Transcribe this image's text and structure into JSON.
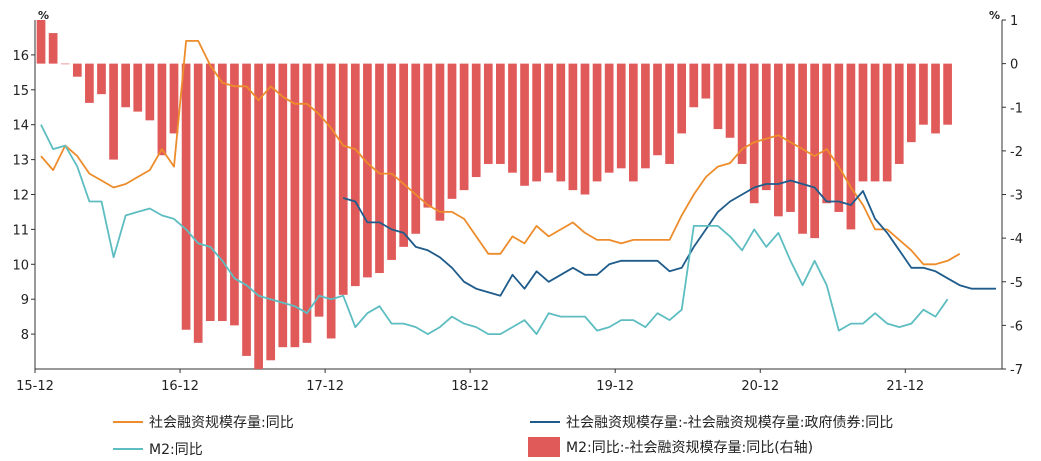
{
  "chart_data": {
    "type": "bar+line",
    "units": {
      "left": "%",
      "right": "%"
    },
    "x_ticks": [
      "15-12",
      "16-12",
      "17-12",
      "18-12",
      "19-12",
      "20-12",
      "21-12"
    ],
    "left_axis": {
      "min": 7,
      "max": 17,
      "ticks": [
        8,
        9,
        10,
        11,
        12,
        13,
        14,
        15,
        16
      ]
    },
    "right_axis": {
      "min": -7,
      "max": 1,
      "ticks": [
        1,
        0,
        -1,
        -2,
        -3,
        -4,
        -5,
        -6,
        -7
      ]
    },
    "series": [
      {
        "name": "社会融资规模存量:同比",
        "axis": "left",
        "kind": "line",
        "color": "#ED8C2B",
        "start": 0,
        "values": [
          13.1,
          12.7,
          13.4,
          13.1,
          12.6,
          12.4,
          12.2,
          12.3,
          12.5,
          12.7,
          13.3,
          12.8,
          16.4,
          16.4,
          15.7,
          15.2,
          15.1,
          15.1,
          14.7,
          15.1,
          14.8,
          14.6,
          14.6,
          14.3,
          13.9,
          13.4,
          13.3,
          12.9,
          12.6,
          12.6,
          12.3,
          12.0,
          11.7,
          11.5,
          11.5,
          11.3,
          10.8,
          10.3,
          10.3,
          10.8,
          10.6,
          11.1,
          10.8,
          11.0,
          11.2,
          10.9,
          10.7,
          10.7,
          10.6,
          10.7,
          10.7,
          10.7,
          10.7,
          11.4,
          12.0,
          12.5,
          12.8,
          12.9,
          13.3,
          13.5,
          13.6,
          13.7,
          13.5,
          13.3,
          13.1,
          13.3,
          12.8,
          12.2,
          11.7,
          11.0,
          11.0,
          10.7,
          10.4,
          10.0,
          10.0,
          10.1,
          10.3
        ]
      },
      {
        "name": "社会融资规模存量:-社会融资规模存量:政府债券:同比",
        "axis": "left",
        "kind": "line",
        "color": "#1F5C8B",
        "start": 25,
        "values": [
          11.9,
          11.8,
          11.2,
          11.2,
          11.0,
          10.9,
          10.5,
          10.4,
          10.2,
          9.9,
          9.5,
          9.3,
          9.2,
          9.1,
          9.7,
          9.3,
          9.8,
          9.5,
          9.7,
          9.9,
          9.7,
          9.7,
          10.0,
          10.1,
          10.1,
          10.1,
          10.1,
          9.8,
          9.9,
          10.5,
          11.0,
          11.5,
          11.8,
          12.0,
          12.2,
          12.3,
          12.3,
          12.4,
          12.3,
          12.2,
          11.8,
          11.8,
          11.7,
          12.1,
          11.3,
          10.9,
          10.4,
          9.9,
          9.9,
          9.8,
          9.6,
          9.4,
          9.3,
          9.3,
          9.3
        ]
      },
      {
        "name": "M2:同比",
        "axis": "left",
        "kind": "line",
        "color": "#5DBDC1",
        "start": 0,
        "values": [
          14.0,
          13.3,
          13.4,
          12.8,
          11.8,
          11.8,
          10.2,
          11.4,
          11.5,
          11.6,
          11.4,
          11.3,
          11.0,
          10.6,
          10.5,
          10.1,
          9.6,
          9.4,
          9.1,
          9.0,
          8.9,
          8.8,
          8.6,
          9.1,
          9.0,
          9.1,
          8.2,
          8.6,
          8.8,
          8.3,
          8.3,
          8.2,
          8.0,
          8.2,
          8.5,
          8.3,
          8.2,
          8.0,
          8.0,
          8.2,
          8.4,
          8.0,
          8.6,
          8.5,
          8.5,
          8.5,
          8.1,
          8.2,
          8.4,
          8.4,
          8.2,
          8.6,
          8.4,
          8.7,
          11.1,
          11.1,
          11.1,
          10.8,
          10.4,
          11.0,
          10.5,
          10.9,
          10.1,
          9.4,
          10.1,
          9.4,
          8.1,
          8.3,
          8.3,
          8.6,
          8.3,
          8.2,
          8.3,
          8.7,
          8.5,
          9.0
        ]
      },
      {
        "name": "M2:同比:-社会融资规模存量:同比(右轴)",
        "axis": "right",
        "kind": "bar",
        "color": "#E05A5A",
        "start": 0,
        "values": [
          1.0,
          0.7,
          0.0,
          -0.3,
          -0.9,
          -0.7,
          -2.2,
          -1.0,
          -1.1,
          -1.3,
          -2.1,
          -1.6,
          -6.1,
          -6.4,
          -5.9,
          -5.9,
          -6.0,
          -6.7,
          -7.0,
          -6.8,
          -6.5,
          -6.5,
          -6.4,
          -5.8,
          -6.3,
          -5.3,
          -5.1,
          -4.9,
          -4.8,
          -4.5,
          -4.2,
          -3.9,
          -3.3,
          -3.6,
          -3.1,
          -2.9,
          -2.6,
          -2.3,
          -2.3,
          -2.5,
          -2.8,
          -2.7,
          -2.5,
          -2.7,
          -2.9,
          -3.0,
          -2.7,
          -2.5,
          -2.4,
          -2.7,
          -2.4,
          -2.1,
          -2.3,
          -1.6,
          -1.0,
          -0.8,
          -1.5,
          -1.7,
          -2.3,
          -3.2,
          -2.9,
          -3.5,
          -3.4,
          -3.9,
          -4.0,
          -3.2,
          -3.4,
          -3.8,
          -2.7,
          -2.7,
          -2.7,
          -2.3,
          -1.8,
          -1.4,
          -1.6,
          -1.4
        ]
      }
    ],
    "legend_position": "bottom",
    "grid": false
  },
  "legend": [
    {
      "label": "社会融资规模存量:同比",
      "color": "#ED8C2B",
      "kind": "line"
    },
    {
      "label": "社会融资规模存量:-社会融资规模存量:政府债券:同比",
      "color": "#1F5C8B",
      "kind": "line"
    },
    {
      "label": "M2:同比",
      "color": "#5DBDC1",
      "kind": "line"
    },
    {
      "label": "M2:同比:-社会融资规模存量:同比(右轴)",
      "color": "#E05A5A",
      "kind": "bar"
    }
  ]
}
